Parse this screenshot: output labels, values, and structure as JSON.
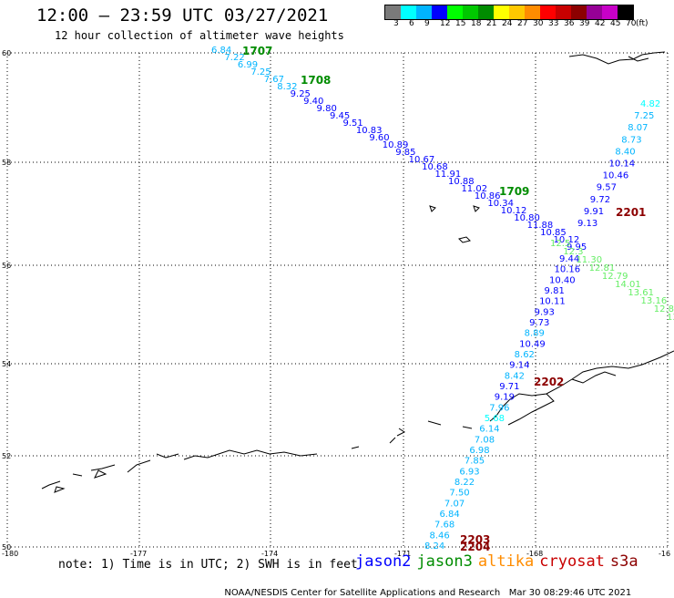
{
  "header": {
    "title": "12:00 – 23:59 UTC 03/27/2021",
    "subtitle": "12 hour collection of altimeter wave heights"
  },
  "color_scale": {
    "unit": "(ft)",
    "labels": [
      "3",
      "6",
      "9",
      "12",
      "15",
      "18",
      "21",
      "24",
      "27",
      "30",
      "33",
      "36",
      "39",
      "42",
      "45",
      "70"
    ],
    "colors": [
      "#7a7a7a",
      "#00ffff",
      "#00b4ff",
      "#0000ff",
      "#00ff00",
      "#00c800",
      "#008c00",
      "#ffff00",
      "#ffc800",
      "#ff8c00",
      "#ff0000",
      "#c80000",
      "#8c0000",
      "#960096",
      "#c800c8",
      "#000000"
    ]
  },
  "axes": {
    "lat_labels": [
      "60",
      "58",
      "56",
      "54",
      "52",
      "50"
    ],
    "lon_labels": [
      "-180",
      "-177",
      "-174",
      "-171",
      "-168",
      "-16"
    ]
  },
  "tracks": {
    "jason2_upper": {
      "values": [
        "6.84",
        "7.22",
        "6.99",
        "7.25",
        "7.67",
        "8.32",
        "9.25",
        "9.40",
        "9.80",
        "9.45",
        "9.51",
        "10.83",
        "9.60",
        "10.89",
        "9.85",
        "10.67",
        "10.68",
        "11.91",
        "10.88",
        "11.02",
        "10.86",
        "10.34",
        "10.12",
        "10.80",
        "11.88",
        "10.85",
        "10.12",
        "9.95",
        "9.44",
        "10.16",
        "10.40",
        "9.81",
        "10.11",
        "9.93",
        "9.73",
        "8.89",
        "10.49",
        "8.62",
        "9.14",
        "8.42",
        "9.71",
        "9.19",
        "7.96",
        "5.68",
        "6.14",
        "7.08",
        "6.98",
        "7.85",
        "6.93",
        "8.22",
        "7.50",
        "7.07",
        "6.84",
        "7.68",
        "8.46",
        "8.24"
      ]
    },
    "jason2_right": {
      "values": [
        "4.82",
        "7.25",
        "8.07",
        "8.73",
        "8.40",
        "10.14",
        "10.46",
        "9.57",
        "9.72",
        "9.91",
        "9.13"
      ]
    },
    "jason3_right": {
      "values": [
        "12.5",
        "12.3",
        "11.30",
        "12.81",
        "12.79",
        "14.01",
        "13.61",
        "13.16",
        "12.82",
        "13.2"
      ]
    },
    "time_labels": [
      "1707",
      "1708",
      "1709",
      "2201",
      "2202",
      "2203",
      "2204"
    ]
  },
  "footer": {
    "note": "note: 1) Time is in UTC; 2) SWH is in feet",
    "sat_names": [
      "jason2",
      "jason3",
      "altika",
      "cryosat",
      "s3a"
    ],
    "sat_colors": [
      "#0000ff",
      "#008c00",
      "#ff8c00",
      "#c80000",
      "#8c0000"
    ],
    "credit": "NOAA/NESDIS Center for Satellite Applications and Research",
    "timestamp": "Mar 30 08:29:46 UTC 2021"
  }
}
